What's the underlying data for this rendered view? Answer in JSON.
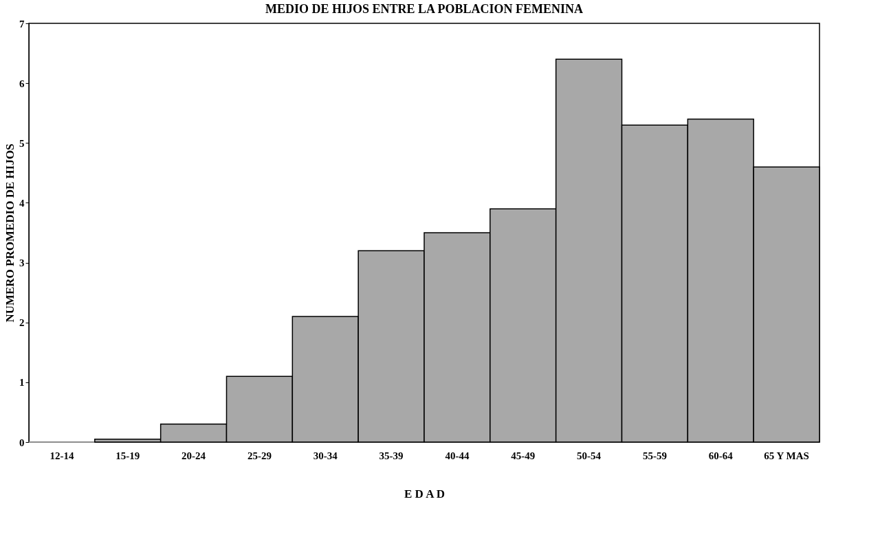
{
  "chart_data": {
    "type": "bar",
    "title": "MEDIO DE HIJOS ENTRE LA POBLACION FEMENINA",
    "xlabel": "E D A D",
    "ylabel": "NUMERO PROMEDIO DE HIJOS",
    "categories": [
      "12-14",
      "15-19",
      "20-24",
      "25-29",
      "30-34",
      "35-39",
      "40-44",
      "45-49",
      "50-54",
      "55-59",
      "60-64",
      "65 Y MAS"
    ],
    "values": [
      0,
      0.05,
      0.3,
      1.1,
      2.1,
      3.2,
      3.5,
      3.9,
      6.4,
      5.3,
      5.4,
      4.6
    ],
    "color": "#a8a8a8",
    "ylim": [
      0,
      7
    ],
    "yticks": [
      0,
      1,
      2,
      3,
      4,
      5,
      6,
      7
    ],
    "grid": false
  }
}
